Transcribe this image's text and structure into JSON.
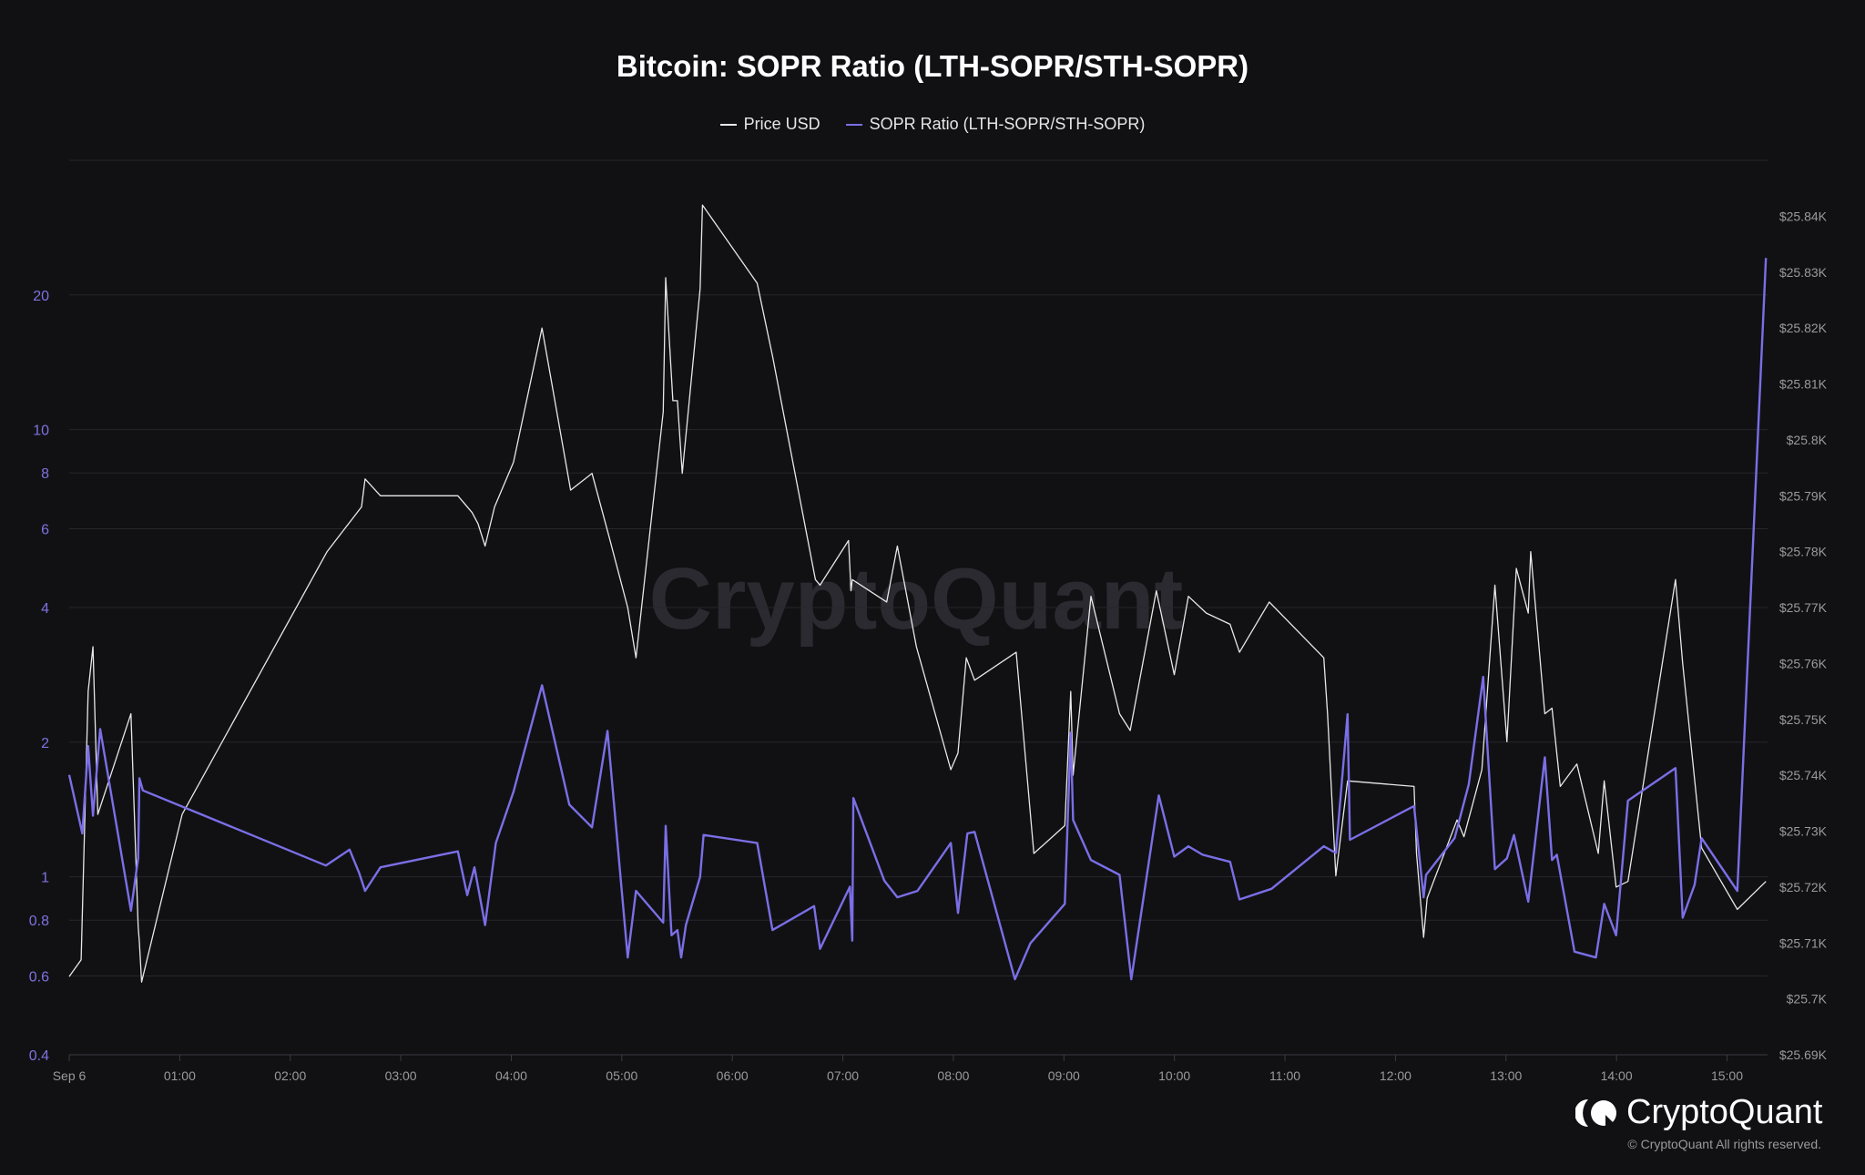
{
  "chart_data": {
    "type": "line",
    "title": "Bitcoin: SOPR Ratio (LTH-SOPR/STH-SOPR)",
    "legend": [
      "Price USD",
      "SOPR Ratio (LTH-SOPR/STH-SOPR)"
    ],
    "legend_position": "top-center",
    "x_unit": "minutes since Sep 6 00:00",
    "x_range": [
      0,
      922
    ],
    "x_ticks": [
      {
        "v": 0,
        "label": "Sep 6"
      },
      {
        "v": 60,
        "label": "01:00"
      },
      {
        "v": 120,
        "label": "02:00"
      },
      {
        "v": 180,
        "label": "03:00"
      },
      {
        "v": 240,
        "label": "04:00"
      },
      {
        "v": 300,
        "label": "05:00"
      },
      {
        "v": 360,
        "label": "06:00"
      },
      {
        "v": 420,
        "label": "07:00"
      },
      {
        "v": 480,
        "label": "08:00"
      },
      {
        "v": 540,
        "label": "09:00"
      },
      {
        "v": 600,
        "label": "10:00"
      },
      {
        "v": 660,
        "label": "11:00"
      },
      {
        "v": 720,
        "label": "12:00"
      },
      {
        "v": 780,
        "label": "13:00"
      },
      {
        "v": 840,
        "label": "14:00"
      },
      {
        "v": 900,
        "label": "15:00"
      }
    ],
    "left_axis": {
      "scale": "log",
      "range": [
        0.4,
        40
      ],
      "ticks": [
        {
          "v": 0.4,
          "label": "0.4"
        },
        {
          "v": 0.6,
          "label": "0.6"
        },
        {
          "v": 0.8,
          "label": "0.8"
        },
        {
          "v": 1,
          "label": "1"
        },
        {
          "v": 2,
          "label": "2"
        },
        {
          "v": 4,
          "label": "4"
        },
        {
          "v": 6,
          "label": "6"
        },
        {
          "v": 8,
          "label": "8"
        },
        {
          "v": 10,
          "label": "10"
        },
        {
          "v": 20,
          "label": "20"
        }
      ],
      "gridlines": [
        0.4,
        0.6,
        0.8,
        1,
        2,
        4,
        6,
        8,
        10,
        20,
        40
      ]
    },
    "right_axis": {
      "scale": "linear",
      "range": [
        25690,
        25850
      ],
      "ticks": [
        {
          "v": 25690,
          "label": "$25.69K"
        },
        {
          "v": 25700,
          "label": "$25.7K"
        },
        {
          "v": 25710,
          "label": "$25.71K"
        },
        {
          "v": 25720,
          "label": "$25.72K"
        },
        {
          "v": 25730,
          "label": "$25.73K"
        },
        {
          "v": 25740,
          "label": "$25.74K"
        },
        {
          "v": 25750,
          "label": "$25.75K"
        },
        {
          "v": 25760,
          "label": "$25.76K"
        },
        {
          "v": 25770,
          "label": "$25.77K"
        },
        {
          "v": 25780,
          "label": "$25.78K"
        },
        {
          "v": 25790,
          "label": "$25.79K"
        },
        {
          "v": 25800,
          "label": "$25.8K"
        },
        {
          "v": 25810,
          "label": "$25.81K"
        },
        {
          "v": 25820,
          "label": "$25.82K"
        },
        {
          "v": 25830,
          "label": "$25.83K"
        },
        {
          "v": 25840,
          "label": "$25.84K"
        }
      ]
    },
    "grid": true,
    "series": [
      {
        "name": "Price USD",
        "axis": "right",
        "color": "#e8e8e8",
        "points": [
          [
            0,
            25704
          ],
          [
            6.5,
            25707
          ],
          [
            10.3,
            25755
          ],
          [
            12.9,
            25763
          ],
          [
            15.5,
            25733
          ],
          [
            33.5,
            25751
          ],
          [
            37.4,
            25713
          ],
          [
            38.1,
            25710
          ],
          [
            39.3,
            25703
          ],
          [
            61.3,
            25733
          ],
          [
            140,
            25780
          ],
          [
            158.7,
            25788
          ],
          [
            160.6,
            25793
          ],
          [
            169,
            25790
          ],
          [
            211,
            25790
          ],
          [
            218.7,
            25787
          ],
          [
            221.9,
            25785
          ],
          [
            225.8,
            25781
          ],
          [
            230.9,
            25788
          ],
          [
            241.2,
            25796
          ],
          [
            256.7,
            25820
          ],
          [
            272.2,
            25791
          ],
          [
            283.8,
            25794
          ],
          [
            292.8,
            25783
          ],
          [
            303.2,
            25770
          ],
          [
            307.7,
            25761
          ],
          [
            322.5,
            25805
          ],
          [
            323.8,
            25829
          ],
          [
            327.7,
            25807
          ],
          [
            330.2,
            25807
          ],
          [
            332.8,
            25794
          ],
          [
            342.5,
            25827
          ],
          [
            343.8,
            25842
          ],
          [
            373.5,
            25828
          ],
          [
            381.8,
            25815
          ],
          [
            405.1,
            25775
          ],
          [
            407.6,
            25774
          ],
          [
            423.1,
            25782
          ],
          [
            424.4,
            25773
          ],
          [
            425.1,
            25775
          ],
          [
            443.8,
            25771
          ],
          [
            449.6,
            25781
          ],
          [
            459.9,
            25763
          ],
          [
            478.6,
            25741
          ],
          [
            482.5,
            25744
          ],
          [
            487,
            25761
          ],
          [
            491.5,
            25757
          ],
          [
            514.1,
            25762
          ],
          [
            523.7,
            25726
          ],
          [
            540.5,
            25731
          ],
          [
            543.7,
            25755
          ],
          [
            545,
            25740
          ],
          [
            554.7,
            25772
          ],
          [
            570.2,
            25751
          ],
          [
            576,
            25748
          ],
          [
            590.2,
            25773
          ],
          [
            599.9,
            25758
          ],
          [
            607.6,
            25772
          ],
          [
            617.3,
            25769
          ],
          [
            630.2,
            25767
          ],
          [
            635.3,
            25762
          ],
          [
            651.5,
            25771
          ],
          [
            681.1,
            25761
          ],
          [
            683.1,
            25751
          ],
          [
            687.6,
            25722
          ],
          [
            694,
            25739
          ],
          [
            730.1,
            25738
          ],
          [
            731.4,
            25726
          ],
          [
            735.3,
            25711
          ],
          [
            737.2,
            25718
          ],
          [
            753.4,
            25732
          ],
          [
            757.2,
            25729
          ],
          [
            766.9,
            25741
          ],
          [
            774,
            25774
          ],
          [
            780.5,
            25746
          ],
          [
            785.6,
            25777
          ],
          [
            792.1,
            25769
          ],
          [
            793.4,
            25780
          ],
          [
            801.1,
            25751
          ],
          [
            805,
            25752
          ],
          [
            809.5,
            25738
          ],
          [
            818.5,
            25742
          ],
          [
            830.1,
            25726
          ],
          [
            833.3,
            25739
          ],
          [
            839.8,
            25720
          ],
          [
            846.2,
            25721
          ],
          [
            872,
            25775
          ],
          [
            875.9,
            25760
          ],
          [
            886.2,
            25727
          ],
          [
            905.6,
            25716
          ],
          [
            921.1,
            25721
          ]
        ]
      },
      {
        "name": "SOPR Ratio (LTH-SOPR/STH-SOPR)",
        "axis": "left",
        "color": "#7b6fe6",
        "points": [
          [
            0,
            1.69
          ],
          [
            7.1,
            1.25
          ],
          [
            10.3,
            1.96
          ],
          [
            12.9,
            1.37
          ],
          [
            16.8,
            2.14
          ],
          [
            33.5,
            0.84
          ],
          [
            37.4,
            1.1
          ],
          [
            38.1,
            1.66
          ],
          [
            40,
            1.56
          ],
          [
            139.3,
            1.06
          ],
          [
            152.2,
            1.15
          ],
          [
            157.4,
            1.02
          ],
          [
            160.6,
            0.93
          ],
          [
            169,
            1.05
          ],
          [
            211,
            1.14
          ],
          [
            216.1,
            0.91
          ],
          [
            220,
            1.05
          ],
          [
            225.8,
            0.78
          ],
          [
            231.6,
            1.19
          ],
          [
            241.2,
            1.55
          ],
          [
            256.7,
            2.68
          ],
          [
            271.5,
            1.45
          ],
          [
            283.8,
            1.29
          ],
          [
            292.2,
            2.12
          ],
          [
            303.2,
            0.66
          ],
          [
            307.7,
            0.93
          ],
          [
            322.5,
            0.79
          ],
          [
            323.8,
            1.3
          ],
          [
            327,
            0.74
          ],
          [
            330.2,
            0.76
          ],
          [
            332.2,
            0.66
          ],
          [
            334.8,
            0.78
          ],
          [
            342.5,
            1.0
          ],
          [
            344.4,
            1.24
          ],
          [
            373.5,
            1.19
          ],
          [
            381.8,
            0.76
          ],
          [
            404.4,
            0.86
          ],
          [
            407.6,
            0.69
          ],
          [
            423.8,
            0.95
          ],
          [
            425.1,
            0.72
          ],
          [
            425.7,
            1.5
          ],
          [
            442.5,
            0.98
          ],
          [
            449.6,
            0.9
          ],
          [
            460.5,
            0.93
          ],
          [
            478.6,
            1.19
          ],
          [
            482.5,
            0.83
          ],
          [
            487.6,
            1.25
          ],
          [
            491.5,
            1.26
          ],
          [
            513.4,
            0.59
          ],
          [
            521.8,
            0.71
          ],
          [
            540.5,
            0.87
          ],
          [
            543.7,
            2.1
          ],
          [
            545,
            1.34
          ],
          [
            554.7,
            1.09
          ],
          [
            570.2,
            1.01
          ],
          [
            576.6,
            0.59
          ],
          [
            591.5,
            1.52
          ],
          [
            599.9,
            1.11
          ],
          [
            607.6,
            1.17
          ],
          [
            615.3,
            1.12
          ],
          [
            630.2,
            1.08
          ],
          [
            635.3,
            0.89
          ],
          [
            652.7,
            0.94
          ],
          [
            681.1,
            1.17
          ],
          [
            687.6,
            1.13
          ],
          [
            694,
            2.31
          ],
          [
            695.3,
            1.21
          ],
          [
            730.1,
            1.44
          ],
          [
            735.3,
            0.9
          ],
          [
            736.6,
            1.01
          ],
          [
            752.1,
            1.22
          ],
          [
            759.8,
            1.61
          ],
          [
            767.6,
            2.8
          ],
          [
            774,
            1.04
          ],
          [
            780.5,
            1.1
          ],
          [
            784.3,
            1.24
          ],
          [
            792.1,
            0.88
          ],
          [
            801.1,
            1.85
          ],
          [
            805,
            1.09
          ],
          [
            807.6,
            1.12
          ],
          [
            817.2,
            0.68
          ],
          [
            828.8,
            0.66
          ],
          [
            833.3,
            0.87
          ],
          [
            839.8,
            0.74
          ],
          [
            846.2,
            1.48
          ],
          [
            872,
            1.75
          ],
          [
            875.9,
            0.81
          ],
          [
            882.4,
            0.96
          ],
          [
            886.2,
            1.22
          ],
          [
            905.6,
            0.93
          ],
          [
            921.1,
            24.2
          ]
        ]
      }
    ]
  },
  "watermark": "CryptoQuant",
  "footer": {
    "brand": "CryptoQuant",
    "copyright": "© CryptoQuant All rights reserved."
  }
}
